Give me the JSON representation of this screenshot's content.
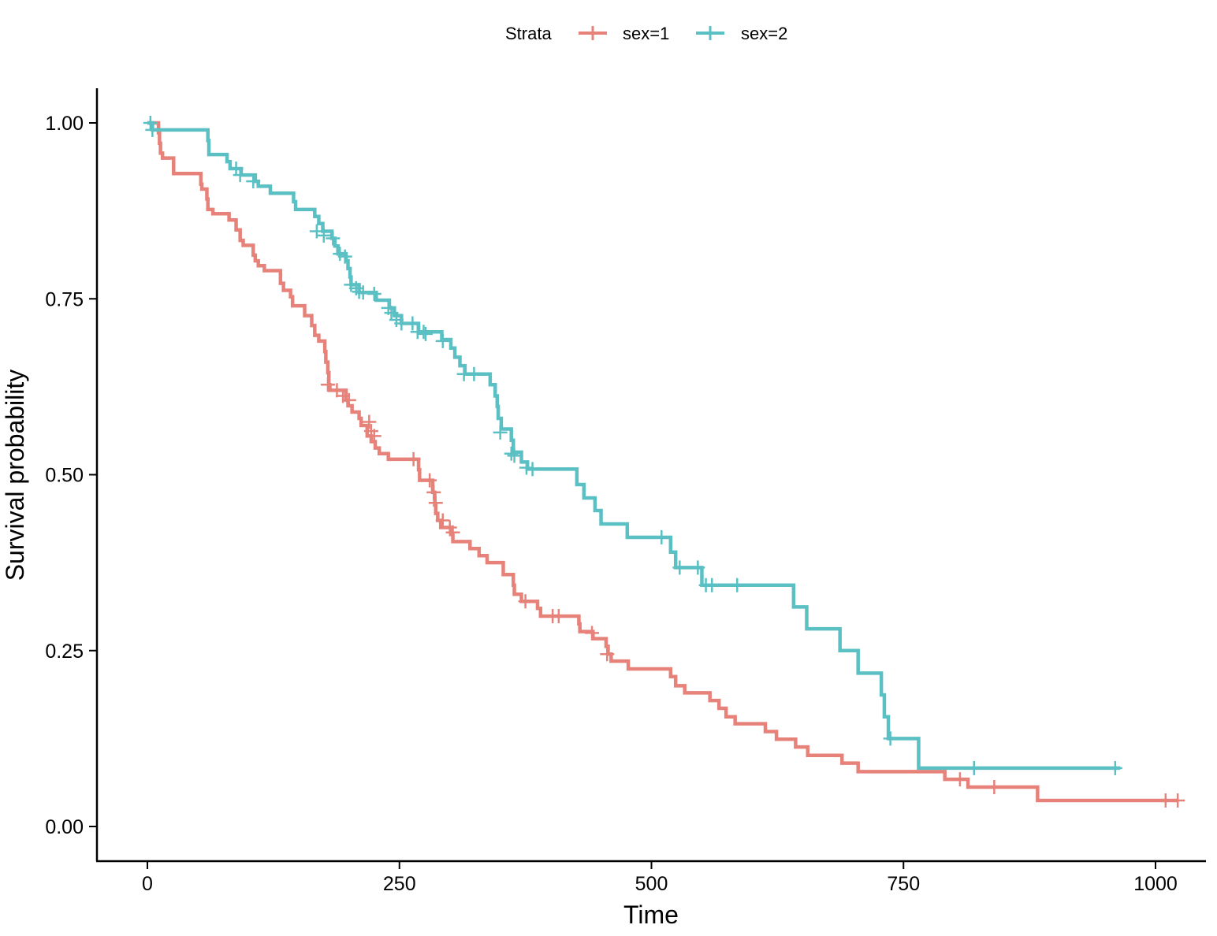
{
  "chart_data": {
    "type": "line",
    "subtype": "kaplan-meier step",
    "title": "",
    "xlabel": "Time",
    "ylabel": "Survival probability",
    "xlim": [
      -50,
      1060
    ],
    "ylim": [
      -0.05,
      1.05
    ],
    "x_ticks": [
      0,
      250,
      500,
      750,
      1000
    ],
    "x_tick_labels": [
      "0",
      "250",
      "500",
      "750",
      "1000"
    ],
    "y_ticks": [
      0,
      0.25,
      0.5,
      0.75,
      1.0
    ],
    "y_tick_labels": [
      "0.00",
      "0.25",
      "0.50",
      "0.75",
      "1.00"
    ],
    "grid": false,
    "legend": {
      "title": "Strata",
      "position": "top",
      "entries": [
        "sex=1",
        "sex=2"
      ]
    },
    "series": [
      {
        "name": "sex=1",
        "color": "#E7827A",
        "steps": [
          [
            0,
            1.0
          ],
          [
            11,
            0.986
          ],
          [
            12,
            0.971
          ],
          [
            13,
            0.957
          ],
          [
            15,
            0.95
          ],
          [
            26,
            0.928
          ],
          [
            53,
            0.913
          ],
          [
            54,
            0.906
          ],
          [
            59,
            0.892
          ],
          [
            60,
            0.877
          ],
          [
            65,
            0.871
          ],
          [
            81,
            0.862
          ],
          [
            88,
            0.848
          ],
          [
            92,
            0.833
          ],
          [
            95,
            0.826
          ],
          [
            105,
            0.812
          ],
          [
            107,
            0.804
          ],
          [
            110,
            0.797
          ],
          [
            116,
            0.79
          ],
          [
            132,
            0.772
          ],
          [
            135,
            0.762
          ],
          [
            142,
            0.753
          ],
          [
            144,
            0.74
          ],
          [
            156,
            0.726
          ],
          [
            163,
            0.712
          ],
          [
            166,
            0.698
          ],
          [
            170,
            0.69
          ],
          [
            176,
            0.675
          ],
          [
            177,
            0.66
          ],
          [
            179,
            0.645
          ],
          [
            180,
            0.628
          ],
          [
            181,
            0.62
          ],
          [
            197,
            0.606
          ],
          [
            199,
            0.598
          ],
          [
            203,
            0.589
          ],
          [
            210,
            0.58
          ],
          [
            212,
            0.57
          ],
          [
            218,
            0.555
          ],
          [
            222,
            0.547
          ],
          [
            226,
            0.538
          ],
          [
            230,
            0.53
          ],
          [
            239,
            0.522
          ],
          [
            269,
            0.507
          ],
          [
            270,
            0.492
          ],
          [
            283,
            0.475
          ],
          [
            285,
            0.457
          ],
          [
            286,
            0.445
          ],
          [
            288,
            0.435
          ],
          [
            291,
            0.425
          ],
          [
            301,
            0.415
          ],
          [
            303,
            0.405
          ],
          [
            320,
            0.395
          ],
          [
            329,
            0.385
          ],
          [
            337,
            0.375
          ],
          [
            353,
            0.358
          ],
          [
            363,
            0.343
          ],
          [
            364,
            0.33
          ],
          [
            371,
            0.32
          ],
          [
            387,
            0.31
          ],
          [
            390,
            0.299
          ],
          [
            428,
            0.288
          ],
          [
            429,
            0.277
          ],
          [
            442,
            0.267
          ],
          [
            455,
            0.256
          ],
          [
            457,
            0.245
          ],
          [
            460,
            0.235
          ],
          [
            477,
            0.224
          ],
          [
            519,
            0.213
          ],
          [
            524,
            0.2
          ],
          [
            533,
            0.19
          ],
          [
            558,
            0.179
          ],
          [
            567,
            0.168
          ],
          [
            574,
            0.156
          ],
          [
            583,
            0.146
          ],
          [
            613,
            0.135
          ],
          [
            624,
            0.124
          ],
          [
            643,
            0.113
          ],
          [
            655,
            0.101
          ],
          [
            689,
            0.09
          ],
          [
            705,
            0.078
          ],
          [
            791,
            0.067
          ],
          [
            814,
            0.056
          ],
          [
            883,
            0.037
          ],
          [
            1022,
            0.037
          ]
        ],
        "censored": [
          [
            179,
            0.628
          ],
          [
            188,
            0.62
          ],
          [
            194,
            0.612
          ],
          [
            200,
            0.606
          ],
          [
            220,
            0.575
          ],
          [
            222,
            0.562
          ],
          [
            225,
            0.555
          ],
          [
            264,
            0.522
          ],
          [
            280,
            0.492
          ],
          [
            284,
            0.475
          ],
          [
            286,
            0.46
          ],
          [
            293,
            0.435
          ],
          [
            300,
            0.425
          ],
          [
            303,
            0.418
          ],
          [
            375,
            0.32
          ],
          [
            402,
            0.299
          ],
          [
            408,
            0.299
          ],
          [
            441,
            0.275
          ],
          [
            456,
            0.245
          ],
          [
            806,
            0.067
          ],
          [
            840,
            0.056
          ],
          [
            1010,
            0.037
          ],
          [
            1022,
            0.037
          ]
        ]
      },
      {
        "name": "sex=2",
        "color": "#5BC0C4",
        "steps": [
          [
            0,
            1.0
          ],
          [
            5,
            0.99
          ],
          [
            60,
            0.975
          ],
          [
            61,
            0.955
          ],
          [
            79,
            0.945
          ],
          [
            82,
            0.935
          ],
          [
            93,
            0.926
          ],
          [
            107,
            0.917
          ],
          [
            110,
            0.91
          ],
          [
            122,
            0.9
          ],
          [
            145,
            0.888
          ],
          [
            147,
            0.877
          ],
          [
            166,
            0.867
          ],
          [
            170,
            0.857
          ],
          [
            174,
            0.846
          ],
          [
            183,
            0.836
          ],
          [
            186,
            0.825
          ],
          [
            189,
            0.814
          ],
          [
            197,
            0.804
          ],
          [
            199,
            0.793
          ],
          [
            201,
            0.781
          ],
          [
            202,
            0.77
          ],
          [
            210,
            0.759
          ],
          [
            227,
            0.748
          ],
          [
            240,
            0.737
          ],
          [
            245,
            0.726
          ],
          [
            252,
            0.715
          ],
          [
            269,
            0.703
          ],
          [
            292,
            0.692
          ],
          [
            301,
            0.68
          ],
          [
            305,
            0.667
          ],
          [
            310,
            0.655
          ],
          [
            315,
            0.643
          ],
          [
            340,
            0.628
          ],
          [
            345,
            0.612
          ],
          [
            347,
            0.597
          ],
          [
            348,
            0.58
          ],
          [
            351,
            0.565
          ],
          [
            361,
            0.549
          ],
          [
            363,
            0.532
          ],
          [
            371,
            0.518
          ],
          [
            377,
            0.508
          ],
          [
            426,
            0.486
          ],
          [
            433,
            0.467
          ],
          [
            444,
            0.449
          ],
          [
            450,
            0.43
          ],
          [
            476,
            0.411
          ],
          [
            519,
            0.39
          ],
          [
            524,
            0.368
          ],
          [
            550,
            0.343
          ],
          [
            641,
            0.312
          ],
          [
            654,
            0.281
          ],
          [
            687,
            0.25
          ],
          [
            705,
            0.218
          ],
          [
            728,
            0.187
          ],
          [
            731,
            0.156
          ],
          [
            735,
            0.125
          ],
          [
            765,
            0.083
          ],
          [
            965,
            0.083
          ]
        ],
        "censored": [
          [
            3,
            1.0
          ],
          [
            5,
            0.99
          ],
          [
            88,
            0.935
          ],
          [
            92,
            0.926
          ],
          [
            105,
            0.917
          ],
          [
            168,
            0.846
          ],
          [
            175,
            0.84
          ],
          [
            184,
            0.836
          ],
          [
            191,
            0.814
          ],
          [
            196,
            0.81
          ],
          [
            202,
            0.77
          ],
          [
            207,
            0.765
          ],
          [
            210,
            0.76
          ],
          [
            214,
            0.759
          ],
          [
            225,
            0.757
          ],
          [
            239,
            0.737
          ],
          [
            242,
            0.73
          ],
          [
            247,
            0.72
          ],
          [
            252,
            0.715
          ],
          [
            263,
            0.715
          ],
          [
            268,
            0.703
          ],
          [
            274,
            0.703
          ],
          [
            276,
            0.7
          ],
          [
            293,
            0.69
          ],
          [
            314,
            0.643
          ],
          [
            324,
            0.643
          ],
          [
            350,
            0.56
          ],
          [
            361,
            0.53
          ],
          [
            364,
            0.527
          ],
          [
            376,
            0.51
          ],
          [
            382,
            0.508
          ],
          [
            510,
            0.411
          ],
          [
            528,
            0.368
          ],
          [
            546,
            0.368
          ],
          [
            554,
            0.343
          ],
          [
            560,
            0.343
          ],
          [
            585,
            0.343
          ],
          [
            737,
            0.125
          ],
          [
            820,
            0.083
          ],
          [
            960,
            0.083
          ]
        ]
      }
    ]
  }
}
